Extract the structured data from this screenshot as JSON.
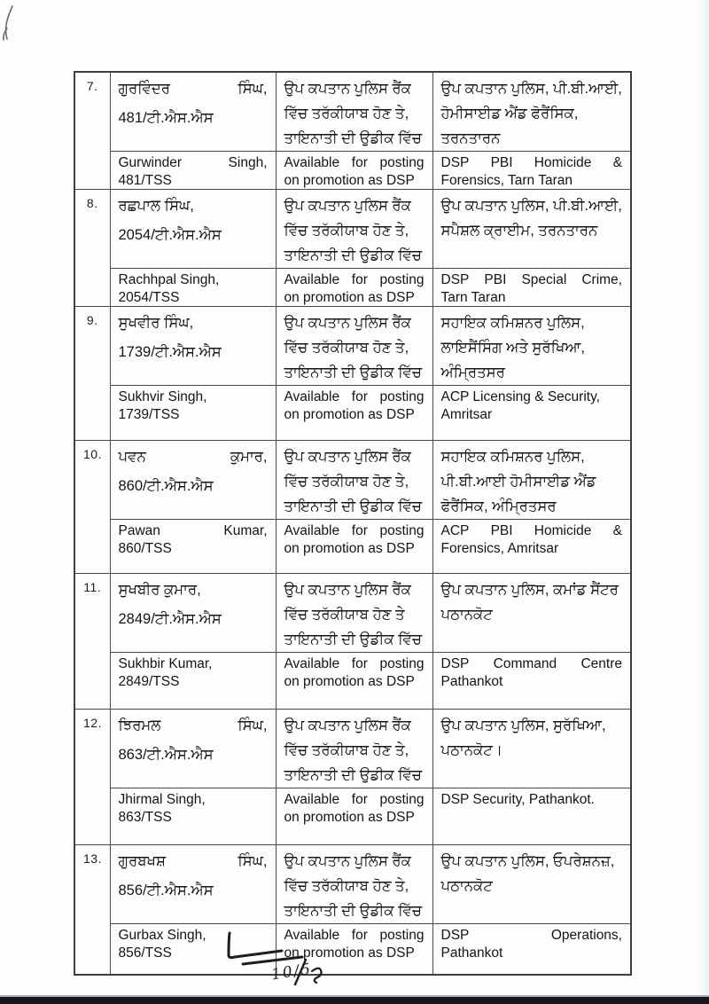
{
  "colors": {
    "page_bg": "#fdfdfc",
    "table_border": "#4a4a4a",
    "text": "#1b1b1b",
    "scan_band": "#17171b"
  },
  "table": {
    "rows": [
      {
        "no": "7.",
        "pa": {
          "name": "ਗੁਰਵਿੰਦਰ ਸਿੰਘ,",
          "badge": "481/ਟੀ.ਐਸ.ਐਸ",
          "status": "ਉਪ ਕਪਤਾਨ ਪੁਲਿਸ ਰੈਂਕ ਵਿੱਚ ਤਰੱਕੀਯਾਬ ਹੋਣ ਤੇ, ਤਾਇਨਾਤੀ ਦੀ ਉਡੀਕ ਵਿੱਚ",
          "posting": "ਉਪ ਕਪਤਾਨ ਪੁਲਿਸ, ਪੀ.ਬੀ.ਆਈ, ਹੋਮੀਸਾਈਡ ਐਂਡ ਫੋਰੈਂਸਿਕ, ਤਰਨਤਾਰਨ"
        },
        "en": {
          "name": "Gurwinder Singh,",
          "badge": "481/TSS",
          "status": "Available for posting on promotion as DSP",
          "posting_line1": "DSP PBI Homicide &",
          "posting_line2": "Forensics, Tarn Taran"
        }
      },
      {
        "no": "8.",
        "pa": {
          "name": "ਰਛਪਾਲ ਸਿੰਘ,",
          "badge": "2054/ਟੀ.ਐਸ.ਐਸ",
          "status": "ਉਪ ਕਪਤਾਨ ਪੁਲਿਸ ਰੈਂਕ ਵਿੱਚ ਤਰੱਕੀਯਾਬ ਹੋਣ ਤੇ, ਤਾਇਨਾਤੀ ਦੀ ਉਡੀਕ ਵਿੱਚ",
          "posting": "ਉਪ ਕਪਤਾਨ ਪੁਲਿਸ, ਪੀ.ਬੀ.ਆਈ, ਸਪੈਸ਼ਲ ਕ੍ਰਾਈਮ, ਤਰਨਤਾਰਨ"
        },
        "en": {
          "name": "Rachhpal Singh,",
          "badge": "2054/TSS",
          "status": "Available for posting on promotion as DSP",
          "posting_line1": "DSP PBI Special Crime,",
          "posting_line2": "Tarn Taran"
        }
      },
      {
        "no": "9.",
        "pa": {
          "name": "ਸੁਖਵੀਰ ਸਿੰਘ,",
          "badge": "1739/ਟੀ.ਐਸ.ਐਸ",
          "status": "ਉਪ ਕਪਤਾਨ ਪੁਲਿਸ ਰੈਂਕ ਵਿੱਚ ਤਰੱਕੀਯਾਬ ਹੋਣ ਤੇ, ਤਾਇਨਾਤੀ ਦੀ ਉਡੀਕ ਵਿੱਚ",
          "posting": "ਸਹਾਇਕ ਕਮਿਸ਼ਨਰ ਪੁਲਿਸ, ਲਾਇਸੈਂਸਿੰਗ ਅਤੇ ਸੁਰੱਖਿਆ, ਅੰਮ੍ਰਿਤਸਰ"
        },
        "en": {
          "name": "Sukhvir Singh,",
          "badge": "1739/TSS",
          "status": "Available for posting on promotion as DSP",
          "posting_line1": "ACP Licensing & Security,",
          "posting_line2": "Amritsar"
        }
      },
      {
        "no": "10.",
        "pa": {
          "name": "ਪਵਨ ਕੁਮਾਰ,",
          "badge": "860/ਟੀ.ਐਸ.ਐਸ",
          "status": "ਉਪ ਕਪਤਾਨ ਪੁਲਿਸ ਰੈਂਕ ਵਿੱਚ ਤਰੱਕੀਯਾਬ ਹੋਣ ਤੇ, ਤਾਇਨਾਤੀ ਦੀ ਉਡੀਕ ਵਿੱਚ",
          "posting": "ਸਹਾਇਕ ਕਮਿਸ਼ਨਰ ਪੁਲਿਸ, ਪੀ.ਬੀ.ਆਈ ਹੋਮੀਸਾਈਡ ਐਂਡ ਫੋਰੈਂਸਿਕ, ਅੰਮ੍ਰਿਤਸਰ"
        },
        "en": {
          "name": "Pawan Kumar,",
          "badge": "860/TSS",
          "status": "Available for posting on promotion as DSP",
          "posting_line1": "ACP PBI Homicide &",
          "posting_line2": "Forensics, Amritsar"
        }
      },
      {
        "no": "11.",
        "pa": {
          "name": "ਸੁਖਬੀਰ ਕੁਮਾਰ,",
          "badge": "2849/ਟੀ.ਐਸ.ਐਸ",
          "status": "ਉਪ ਕਪਤਾਨ ਪੁਲਿਸ ਰੈਂਕ ਵਿੱਚ ਤਰੱਕੀਯਾਬ ਹੋਣ ਤੇ ਤਾਇਨਾਤੀ ਦੀ ਉਡੀਕ ਵਿੱਚ",
          "posting": "ਉਪ ਕਪਤਾਨ ਪੁਲਿਸ, ਕਮਾਂਡ ਸੈਂਟਰ ਪਠਾਨਕੋਟ"
        },
        "en": {
          "name": "Sukhbir Kumar,",
          "badge": "2849/TSS",
          "status": "Available for posting on promotion as DSP",
          "posting_line1": "DSP Command Centre",
          "posting_line2": "Pathankot"
        }
      },
      {
        "no": "12.",
        "pa": {
          "name": "ਝਿਰਮਲ ਸਿੰਘ,",
          "badge": "863/ਟੀ.ਐਸ.ਐਸ",
          "status": "ਉਪ ਕਪਤਾਨ ਪੁਲਿਸ ਰੈਂਕ ਵਿੱਚ ਤਰੱਕੀਯਾਬ ਹੋਣ ਤੇ, ਤਾਇਨਾਤੀ ਦੀ ਉਡੀਕ ਵਿੱਚ",
          "posting": "ਉਪ ਕਪਤਾਨ ਪੁਲਿਸ, ਸੁਰੱਖਿਆ, ਪਠਾਨਕੋਟ।"
        },
        "en": {
          "name": "Jhirmal Singh,",
          "badge": "863/TSS",
          "status": "Available for posting on promotion as DSP",
          "posting_line1": "DSP Security, Pathankot.",
          "posting_line2": ""
        }
      },
      {
        "no": "13.",
        "pa": {
          "name": "ਗੁਰਬਖਸ਼ ਸਿੰਘ,",
          "badge": "856/ਟੀ.ਐਸ.ਐਸ",
          "status": "ਉਪ ਕਪਤਾਨ ਪੁਲਿਸ ਰੈਂਕ ਵਿੱਚ ਤਰੱਕੀਯਾਬ ਹੋਣ ਤੇ, ਤਾਇਨਾਤੀ ਦੀ ਉਡੀਕ ਵਿੱਚ",
          "posting": "ਉਪ ਕਪਤਾਨ ਪੁਲਿਸ, ਓਪਰੇਸ਼ਨਜ਼, ਪਠਾਨਕੋਟ"
        },
        "en": {
          "name": "Gurbax Singh,",
          "badge": "856/TSS",
          "status": "Available for posting on promotion as DSP",
          "posting_line1": "DSP Operations,",
          "posting_line2": "Pathankot"
        }
      }
    ]
  },
  "annotations": {
    "signature_text": "10/5"
  }
}
